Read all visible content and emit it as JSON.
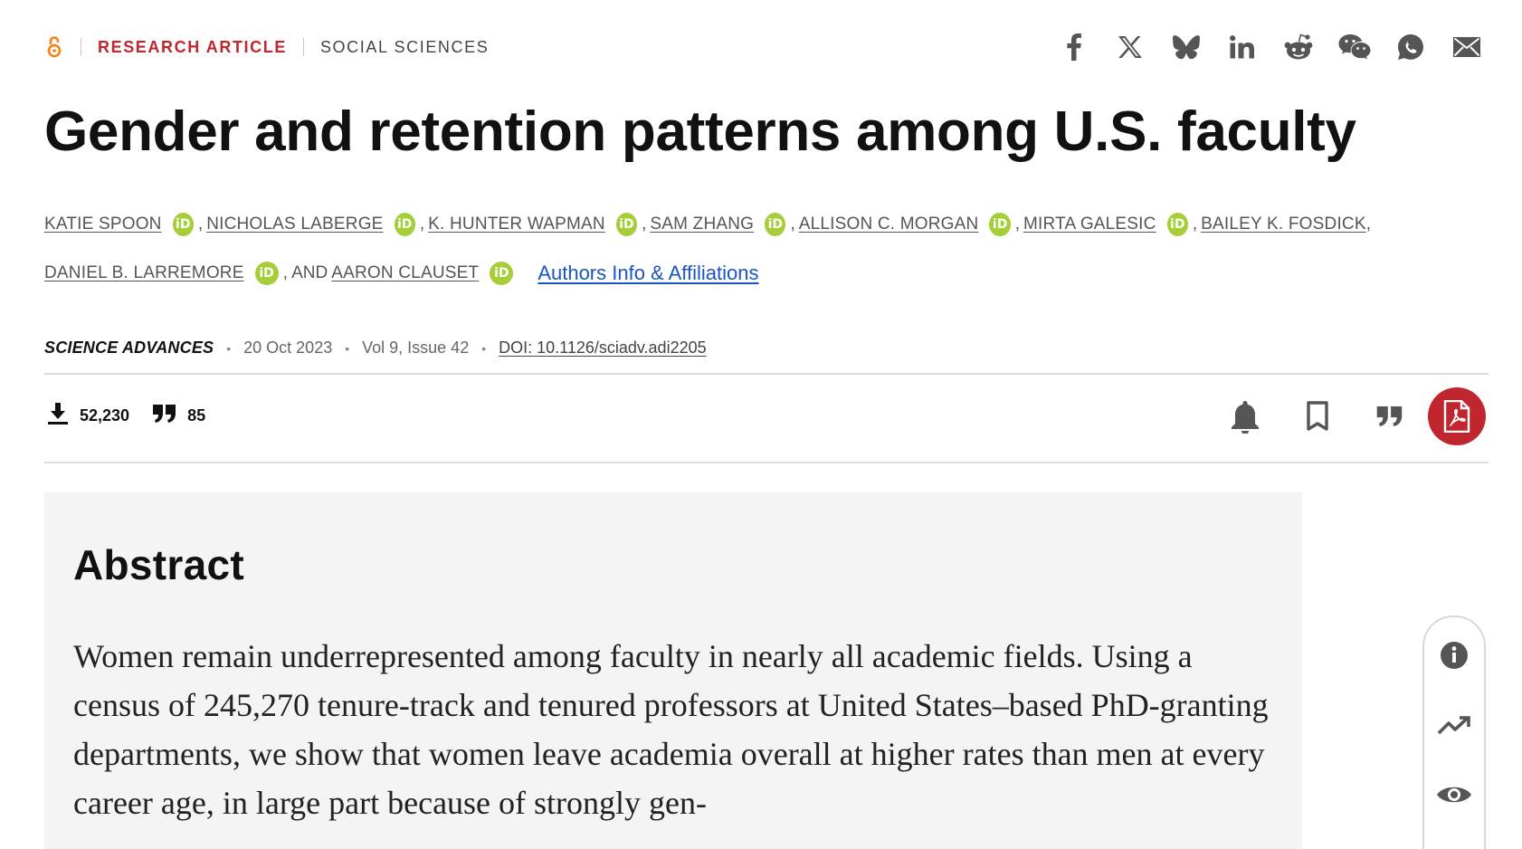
{
  "header": {
    "article_type": "RESEARCH ARTICLE",
    "subject": "SOCIAL SCIENCES",
    "open_access_icon": "open-access-icon",
    "share_icons": [
      "facebook-icon",
      "x-icon",
      "bluesky-icon",
      "linkedin-icon",
      "reddit-icon",
      "wechat-icon",
      "whatsapp-icon",
      "email-icon"
    ]
  },
  "article": {
    "title": "Gender and retention patterns among U.S. faculty",
    "authors_line1": [
      {
        "name": "KATIE SPOON",
        "orcid": true,
        "sep": ","
      },
      {
        "name": "NICHOLAS LABERGE",
        "orcid": true,
        "sep": ","
      },
      {
        "name": "K. HUNTER WAPMAN",
        "orcid": true,
        "sep": ","
      },
      {
        "name": "SAM ZHANG",
        "orcid": true,
        "sep": ","
      },
      {
        "name": "ALLISON C. MORGAN",
        "orcid": true,
        "sep": ","
      },
      {
        "name": "MIRTA GALESIC",
        "orcid": true,
        "sep": ","
      },
      {
        "name": "BAILEY K. FOSDICK",
        "orcid": false,
        "sep": ","
      }
    ],
    "authors_line2": {
      "author1": "DANIEL B. LARREMORE",
      "conj": ", AND",
      "author2": "AARON CLAUSET"
    },
    "orcid_glyph": "iD",
    "affiliations_link": "Authors Info & Affiliations"
  },
  "meta": {
    "journal": "SCIENCE ADVANCES",
    "date": "20 Oct 2023",
    "volume": "Vol 9, Issue 42",
    "doi": "DOI: 10.1126/sciadv.adi2205",
    "separator": "•"
  },
  "metrics": {
    "downloads": "52,230",
    "citations": "85"
  },
  "tools": [
    "bell-icon",
    "bookmark-icon",
    "quote-icon",
    "pdf-icon"
  ],
  "abstract": {
    "heading": "Abstract",
    "text": "Women remain underrepresented among faculty in nearly all academic fields. Using a census of 245,270 tenure-track and tenured professors at United States–based PhD-granting departments, we show that women leave academia overall at higher rates than men at every career age, in large part because of strongly gen-"
  },
  "side_tools": [
    "info-icon",
    "trending-icon",
    "eye-icon"
  ],
  "colors": {
    "accent_red": "#c0262d",
    "orcid_green": "#a6ce39",
    "link_blue": "#1a55c4",
    "abstract_bg": "#f4f4f4"
  }
}
